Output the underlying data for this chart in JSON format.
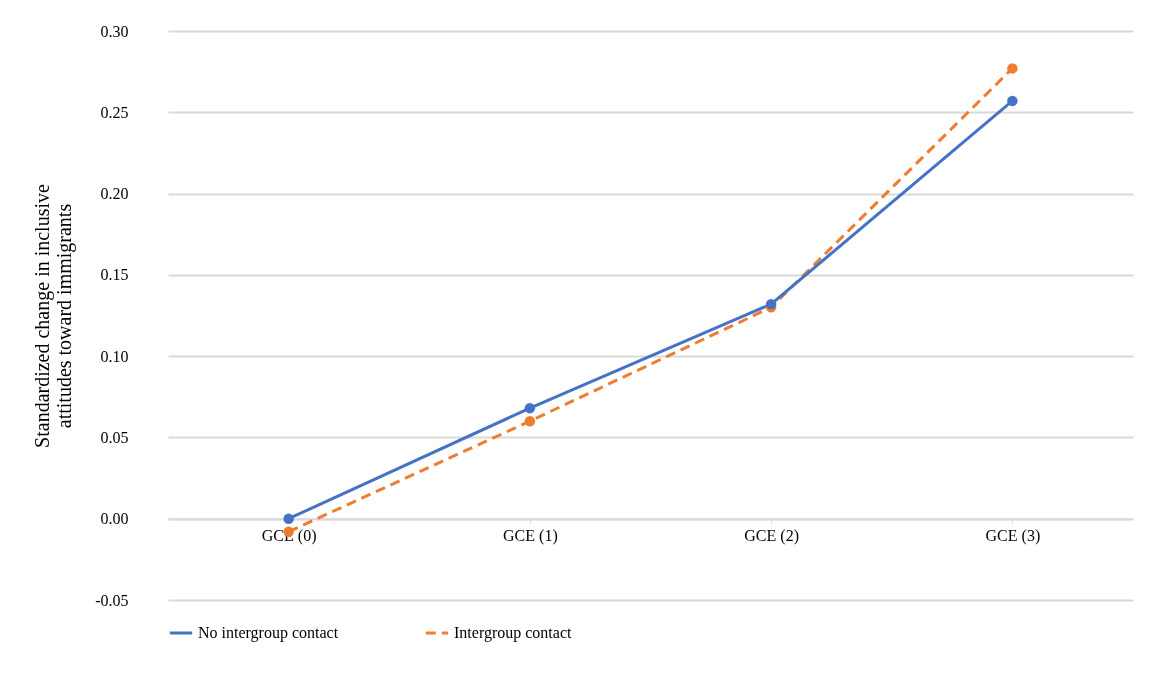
{
  "chart_data": {
    "type": "line",
    "ylabel": "Standardized change in inclusive attitudes toward immigrants",
    "categories": [
      "GCE (0)",
      "GCE (1)",
      "GCE (2)",
      "GCE (3)"
    ],
    "series": [
      {
        "name": "No intergroup contact",
        "color": "#4472c4",
        "line_style": "solid",
        "values": [
          0.0,
          0.068,
          0.132,
          0.257
        ]
      },
      {
        "name": "Intergroup contact",
        "color": "#ed7d31",
        "line_style": "dashed",
        "values": [
          -0.008,
          0.06,
          0.13,
          0.277
        ]
      }
    ],
    "ylim": [
      -0.05,
      0.3
    ],
    "yticks": [
      {
        "value": -0.05,
        "label": "-0.05"
      },
      {
        "value": 0,
        "label": "0.00"
      },
      {
        "value": 0.05,
        "label": "0.05"
      },
      {
        "value": 0.1,
        "label": "0.10"
      },
      {
        "value": 0.15,
        "label": "0.15"
      },
      {
        "value": 0.2,
        "label": "0.20"
      },
      {
        "value": 0.25,
        "label": "0.25"
      },
      {
        "value": 0.3,
        "label": "0.30"
      }
    ],
    "grid": "y",
    "legend": "bottom",
    "marker": "circle"
  }
}
